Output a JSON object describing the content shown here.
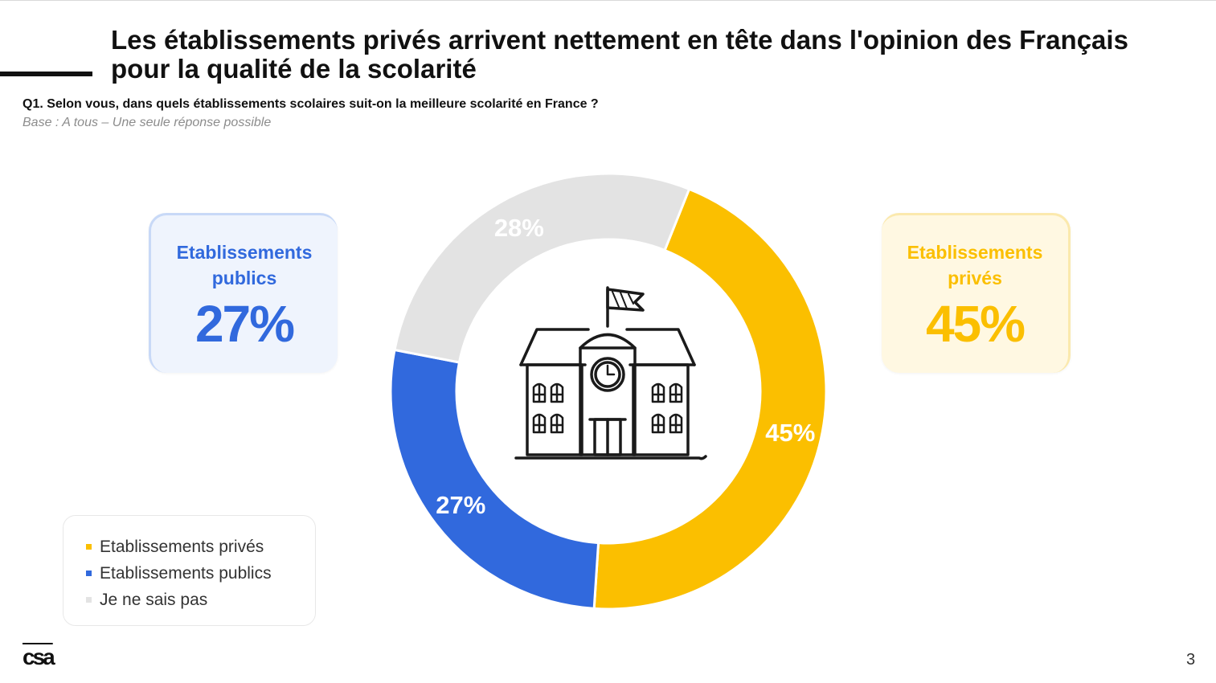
{
  "title": "Les établissements privés arrivent nettement en tête dans l'opinion des Français pour la qualité de la scolarité",
  "question": "Q1. Selon vous, dans quels établissements scolaires suit-on la meilleure scolarité en France ?",
  "base": "Base : A tous – Une seule réponse possible",
  "callouts": {
    "public": {
      "label": "Etablissements publics",
      "value": "27%",
      "color": "#3169dd"
    },
    "private": {
      "label": "Etablissements privés",
      "value": "45%",
      "color": "#fbbf00"
    }
  },
  "legend": [
    {
      "label": "Etablissements privés",
      "color": "#fbbf00"
    },
    {
      "label": "Etablissements publics",
      "color": "#3169dd"
    },
    {
      "label": "Je ne sais pas",
      "color": "#e3e3e3"
    }
  ],
  "center_icon": "school-building-icon",
  "chart_data": {
    "type": "pie",
    "donut": true,
    "categories": [
      "Etablissements privés",
      "Etablissements publics",
      "Je ne sais pas"
    ],
    "values": [
      45,
      27,
      28
    ],
    "data_labels": [
      "45%",
      "27%",
      "28%"
    ],
    "colors": [
      "#fbbf00",
      "#3169dd",
      "#e3e3e3"
    ],
    "legend_position": "bottom-left"
  },
  "logo": "csa",
  "page_number": "3"
}
